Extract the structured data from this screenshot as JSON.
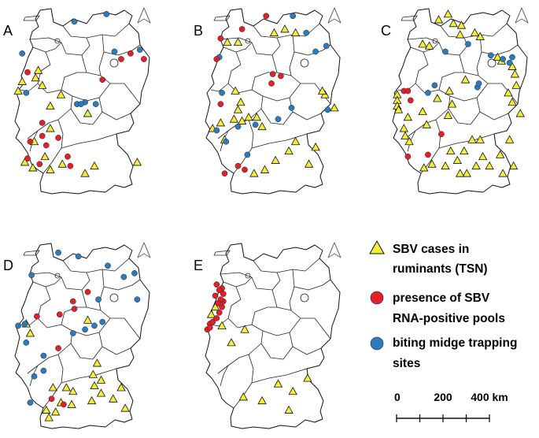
{
  "panels": [
    {
      "label": "A",
      "triangles": [
        [
          0.27,
          0.54
        ],
        [
          0.21,
          0.43
        ],
        [
          0.35,
          0.48
        ],
        [
          0.55,
          0.58
        ],
        [
          0.15,
          0.73
        ],
        [
          0.27,
          0.66
        ],
        [
          0.16,
          0.39
        ],
        [
          0.18,
          0.35
        ],
        [
          0.06,
          0.41
        ],
        [
          0.03,
          0.46
        ],
        [
          0.6,
          0.86
        ],
        [
          0.08,
          0.84
        ],
        [
          0.36,
          0.85
        ],
        [
          0.53,
          0.9
        ],
        [
          0.92,
          0.84
        ],
        [
          0.27,
          0.88
        ],
        [
          0.23,
          0.81
        ],
        [
          0.14,
          0.87
        ]
      ],
      "circles": [
        [
          0.45,
          0.09
        ],
        [
          0.69,
          0.05
        ],
        [
          0.75,
          0.25
        ],
        [
          0.8,
          0.29
        ],
        [
          0.87,
          0.26
        ],
        [
          0.97,
          0.29
        ],
        [
          0.94,
          0.24
        ],
        [
          0.66,
          0.4
        ],
        [
          0.06,
          0.26
        ],
        [
          0.1,
          0.36
        ],
        [
          0.09,
          0.47
        ],
        [
          0.47,
          0.53
        ],
        [
          0.53,
          0.52
        ],
        [
          0.5,
          0.53
        ],
        [
          0.61,
          0.53
        ],
        [
          0.21,
          0.63
        ],
        [
          0.21,
          0.7
        ],
        [
          0.12,
          0.73
        ],
        [
          0.33,
          0.71
        ],
        [
          0.24,
          0.75
        ],
        [
          0.4,
          0.81
        ],
        [
          0.19,
          0.85
        ],
        [
          0.1,
          0.82
        ],
        [
          0.42,
          0.86
        ]
      ],
      "circle_colors": [
        "blue",
        "blue",
        "blue",
        "red",
        "red",
        "red",
        "blue",
        "red",
        "blue",
        "red",
        "blue",
        "blue",
        "blue",
        "blue",
        "blue",
        "red",
        "red",
        "red",
        "red",
        "red",
        "red",
        "red",
        "red",
        "red"
      ]
    },
    {
      "label": "B",
      "triangles": [
        [
          0.52,
          0.15
        ],
        [
          0.6,
          0.13
        ],
        [
          0.68,
          0.15
        ],
        [
          0.17,
          0.2
        ],
        [
          0.25,
          0.2
        ],
        [
          0.97,
          0.55
        ],
        [
          0.9,
          0.48
        ],
        [
          0.88,
          0.46
        ],
        [
          0.23,
          0.46
        ],
        [
          0.27,
          0.52
        ],
        [
          0.25,
          0.56
        ],
        [
          0.22,
          0.61
        ],
        [
          0.28,
          0.62
        ],
        [
          0.33,
          0.6
        ],
        [
          0.12,
          0.63
        ],
        [
          0.43,
          0.65
        ],
        [
          0.15,
          0.72
        ],
        [
          0.06,
          0.66
        ],
        [
          0.63,
          0.78
        ],
        [
          0.53,
          0.83
        ],
        [
          0.45,
          0.88
        ],
        [
          0.37,
          0.9
        ],
        [
          0.78,
          0.85
        ],
        [
          0.83,
          0.76
        ],
        [
          0.68,
          0.73
        ],
        [
          0.39,
          0.6
        ]
      ],
      "circles": [
        [
          0.12,
          0.18
        ],
        [
          0.28,
          0.13
        ],
        [
          0.46,
          0.06
        ],
        [
          0.66,
          0.06
        ],
        [
          0.76,
          0.15
        ],
        [
          0.83,
          0.25
        ],
        [
          0.91,
          0.22
        ],
        [
          0.51,
          0.37
        ],
        [
          0.57,
          0.38
        ],
        [
          0.5,
          0.42
        ],
        [
          0.65,
          0.55
        ],
        [
          0.55,
          0.61
        ],
        [
          0.38,
          0.64
        ],
        [
          0.25,
          0.65
        ],
        [
          0.13,
          0.47
        ],
        [
          0.12,
          0.53
        ],
        [
          0.09,
          0.67
        ],
        [
          0.16,
          0.73
        ],
        [
          0.25,
          0.86
        ],
        [
          0.3,
          0.88
        ],
        [
          0.32,
          0.8
        ],
        [
          0.15,
          0.9
        ],
        [
          0.11,
          0.28
        ],
        [
          0.09,
          0.29
        ],
        [
          0.92,
          0.56
        ]
      ],
      "circle_colors": [
        "red",
        "red",
        "red",
        "blue",
        "blue",
        "blue",
        "blue",
        "red",
        "red",
        "red",
        "blue",
        "blue",
        "blue",
        "blue",
        "blue",
        "red",
        "blue",
        "blue",
        "red",
        "red",
        "blue",
        "red",
        "blue",
        "red",
        "blue"
      ]
    },
    {
      "label": "C",
      "triangles": [
        [
          0.35,
          0.08
        ],
        [
          0.42,
          0.05
        ],
        [
          0.46,
          0.1
        ],
        [
          0.52,
          0.11
        ],
        [
          0.51,
          0.16
        ],
        [
          0.66,
          0.17
        ],
        [
          0.62,
          0.15
        ],
        [
          0.23,
          0.21
        ],
        [
          0.28,
          0.22
        ],
        [
          0.79,
          0.28
        ],
        [
          0.82,
          0.3
        ],
        [
          0.9,
          0.33
        ],
        [
          0.92,
          0.37
        ],
        [
          0.93,
          0.43
        ],
        [
          0.87,
          0.47
        ],
        [
          0.9,
          0.52
        ],
        [
          0.96,
          0.58
        ],
        [
          0.55,
          0.4
        ],
        [
          0.43,
          0.46
        ],
        [
          0.34,
          0.5
        ],
        [
          0.45,
          0.53
        ],
        [
          0.42,
          0.59
        ],
        [
          0.23,
          0.57
        ],
        [
          0.12,
          0.6
        ],
        [
          0.26,
          0.64
        ],
        [
          0.09,
          0.66
        ],
        [
          0.1,
          0.7
        ],
        [
          0.13,
          0.73
        ],
        [
          0.04,
          0.48
        ],
        [
          0.04,
          0.51
        ],
        [
          0.04,
          0.54
        ],
        [
          0.05,
          0.56
        ],
        [
          0.24,
          0.87
        ],
        [
          0.3,
          0.85
        ],
        [
          0.4,
          0.86
        ],
        [
          0.44,
          0.78
        ],
        [
          0.54,
          0.78
        ],
        [
          0.6,
          0.72
        ],
        [
          0.66,
          0.72
        ],
        [
          0.68,
          0.81
        ],
        [
          0.73,
          0.86
        ],
        [
          0.81,
          0.8
        ],
        [
          0.83,
          0.9
        ],
        [
          0.63,
          0.86
        ],
        [
          0.91,
          0.86
        ],
        [
          0.56,
          0.9
        ],
        [
          0.51,
          0.9
        ],
        [
          0.49,
          0.83
        ],
        [
          0.88,
          0.72
        ]
      ],
      "circles": [
        [
          0.4,
          0.25
        ],
        [
          0.57,
          0.21
        ],
        [
          0.74,
          0.27
        ],
        [
          0.83,
          0.29
        ],
        [
          0.9,
          0.28
        ],
        [
          0.88,
          0.31
        ],
        [
          0.64,
          0.44
        ],
        [
          0.32,
          0.43
        ],
        [
          0.27,
          0.47
        ],
        [
          0.09,
          0.46
        ],
        [
          0.12,
          0.46
        ],
        [
          0.14,
          0.51
        ],
        [
          0.37,
          0.69
        ],
        [
          0.27,
          0.8
        ],
        [
          0.12,
          0.81
        ],
        [
          0.65,
          0.42
        ]
      ],
      "circle_colors": [
        "blue",
        "blue",
        "blue",
        "blue",
        "blue",
        "blue",
        "blue",
        "blue",
        "blue",
        "red",
        "red",
        "red",
        "red",
        "red",
        "red",
        "blue"
      ]
    },
    {
      "label": "D",
      "triangles": [
        [
          0.55,
          0.43
        ],
        [
          0.62,
          0.66
        ],
        [
          0.59,
          0.72
        ],
        [
          0.65,
          0.75
        ],
        [
          0.6,
          0.78
        ],
        [
          0.65,
          0.82
        ],
        [
          0.58,
          0.86
        ],
        [
          0.43,
          0.88
        ],
        [
          0.35,
          0.87
        ],
        [
          0.74,
          0.85
        ],
        [
          0.8,
          0.79
        ],
        [
          0.83,
          0.9
        ],
        [
          0.44,
          0.81
        ],
        [
          0.26,
          0.95
        ],
        [
          0.31,
          0.92
        ],
        [
          0.24,
          0.91
        ],
        [
          0.29,
          0.79
        ],
        [
          0.39,
          0.79
        ],
        [
          0.09,
          0.45
        ],
        [
          0.12,
          0.5
        ]
      ],
      "circles": [
        [
          0.13,
          0.19
        ],
        [
          0.33,
          0.07
        ],
        [
          0.48,
          0.09
        ],
        [
          0.55,
          0.28
        ],
        [
          0.63,
          0.32
        ],
        [
          0.7,
          0.14
        ],
        [
          0.82,
          0.2
        ],
        [
          0.9,
          0.18
        ],
        [
          0.92,
          0.32
        ],
        [
          0.66,
          0.44
        ],
        [
          0.6,
          0.46
        ],
        [
          0.53,
          0.48
        ],
        [
          0.22,
          0.62
        ],
        [
          0.33,
          0.58
        ],
        [
          0.09,
          0.55
        ],
        [
          0.03,
          0.46
        ],
        [
          0.08,
          0.45
        ],
        [
          0.15,
          0.73
        ],
        [
          0.22,
          0.7
        ],
        [
          0.28,
          0.85
        ],
        [
          0.12,
          0.87
        ],
        [
          0.37,
          0.88
        ],
        [
          0.44,
          0.33
        ],
        [
          0.45,
          0.37
        ],
        [
          0.34,
          0.4
        ],
        [
          0.44,
          0.5
        ],
        [
          0.17,
          0.41
        ]
      ],
      "circle_colors": [
        "blue",
        "blue",
        "blue",
        "red",
        "blue",
        "blue",
        "blue",
        "blue",
        "blue",
        "blue",
        "blue",
        "blue",
        "blue",
        "red",
        "blue",
        "blue",
        "blue",
        "blue",
        "blue",
        "red",
        "blue",
        "red",
        "red",
        "red",
        "red",
        "blue",
        "red"
      ]
    },
    {
      "label": "E",
      "triangles": [
        [
          0.55,
          0.77
        ],
        [
          0.66,
          0.81
        ],
        [
          0.77,
          0.74
        ],
        [
          0.43,
          0.86
        ],
        [
          0.63,
          0.91
        ],
        [
          0.29,
          0.84
        ],
        [
          0.08,
          0.36
        ],
        [
          0.05,
          0.4
        ],
        [
          0.13,
          0.46
        ],
        [
          0.3,
          0.48
        ],
        [
          0.2,
          0.55
        ]
      ],
      "circles": [
        [
          0.02,
          0.48
        ],
        [
          0.04,
          0.45
        ],
        [
          0.06,
          0.44
        ],
        [
          0.09,
          0.42
        ],
        [
          0.11,
          0.39
        ],
        [
          0.13,
          0.36
        ],
        [
          0.14,
          0.33
        ],
        [
          0.12,
          0.32
        ],
        [
          0.1,
          0.34
        ],
        [
          0.08,
          0.3
        ],
        [
          0.14,
          0.29
        ],
        [
          0.13,
          0.26
        ],
        [
          0.11,
          0.27
        ],
        [
          0.09,
          0.24
        ],
        [
          0.04,
          0.47
        ]
      ],
      "circle_colors": [
        "red",
        "red",
        "red",
        "red",
        "red",
        "red",
        "red",
        "red",
        "red",
        "red",
        "red",
        "red",
        "red",
        "red",
        "red"
      ]
    }
  ],
  "legend": {
    "triangle_line1": "SBV cases in",
    "triangle_line2": "ruminants (TSN)",
    "red_line1": "presence of SBV",
    "red_line2": "RNA-positive pools",
    "blue_line1": "biting midge trapping",
    "blue_line2": "sites"
  },
  "scale": {
    "labels": [
      "0",
      "200",
      "400 km"
    ],
    "ticks_km": [
      0,
      100,
      200,
      300,
      400
    ]
  },
  "colors": {
    "triangle": "#f4ee3a",
    "red": "#e0212b",
    "blue": "#2b7bbf",
    "outline": "#111111",
    "north_arrow": "#666666"
  },
  "icons": {
    "north_arrow": "north-arrow-icon"
  }
}
